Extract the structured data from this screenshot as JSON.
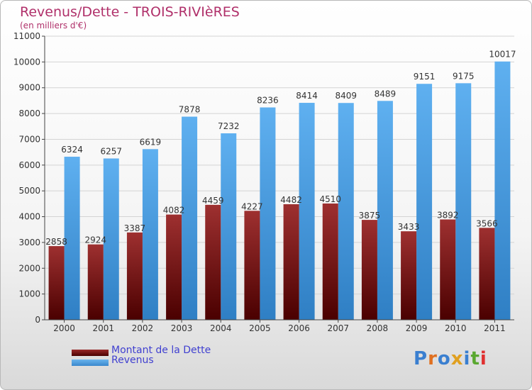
{
  "header": {
    "title": "Revenus/Dette - TROIS-RIVIèRES",
    "subtitle": "(en milliers d'€)"
  },
  "legend": {
    "debt_label": "Montant de la Dette",
    "revenue_label": "Revenus"
  },
  "colors": {
    "debt": "#6b0a0a",
    "revenue": "#4a9ee0",
    "title": "#b0306a",
    "legend_text": "#4040d0"
  },
  "logo": {
    "text": "Proxiti"
  },
  "chart_data": {
    "type": "bar",
    "categories": [
      "2000",
      "2001",
      "2002",
      "2003",
      "2004",
      "2005",
      "2006",
      "2007",
      "2008",
      "2009",
      "2010",
      "2011"
    ],
    "series": [
      {
        "name": "Montant de la Dette",
        "values": [
          2858,
          2924,
          3387,
          4082,
          4459,
          4227,
          4482,
          4510,
          3875,
          3433,
          3892,
          3566
        ]
      },
      {
        "name": "Revenus",
        "values": [
          6324,
          6257,
          6619,
          7878,
          7232,
          8236,
          8414,
          8409,
          8489,
          9151,
          9175,
          10017
        ]
      }
    ],
    "ylim": [
      0,
      11000
    ],
    "yticks": [
      0,
      1000,
      2000,
      3000,
      4000,
      5000,
      6000,
      7000,
      8000,
      9000,
      10000,
      11000
    ],
    "grid": true
  }
}
